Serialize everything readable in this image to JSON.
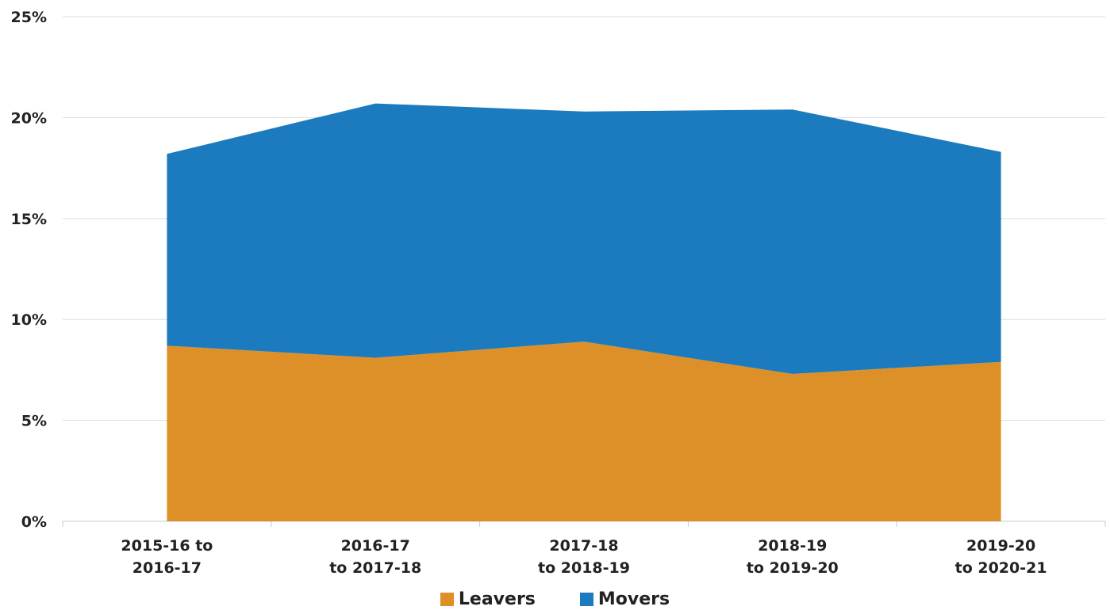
{
  "chart_data": {
    "type": "area",
    "stacked": true,
    "categories": [
      [
        "2015-16 to",
        "2016-17"
      ],
      [
        "2016-17",
        "to 2017-18"
      ],
      [
        "2017-18",
        "to 2018-19"
      ],
      [
        "2018-19",
        "to 2019-20"
      ],
      [
        "2019-20",
        "to 2020-21"
      ]
    ],
    "series": [
      {
        "name": "Leavers",
        "color": "#DD9027",
        "values": [
          8.7,
          8.1,
          8.9,
          7.3,
          7.9
        ]
      },
      {
        "name": "Movers",
        "color": "#1B7BBE",
        "values": [
          9.5,
          12.6,
          11.4,
          13.1,
          10.4
        ]
      }
    ],
    "ylim": [
      0,
      25
    ],
    "yticks": [
      "0%",
      "5%",
      "10%",
      "15%",
      "20%",
      "25%"
    ],
    "ytick_values": [
      0,
      5,
      10,
      15,
      20,
      25
    ],
    "grid": true,
    "legend_position": "bottom"
  }
}
